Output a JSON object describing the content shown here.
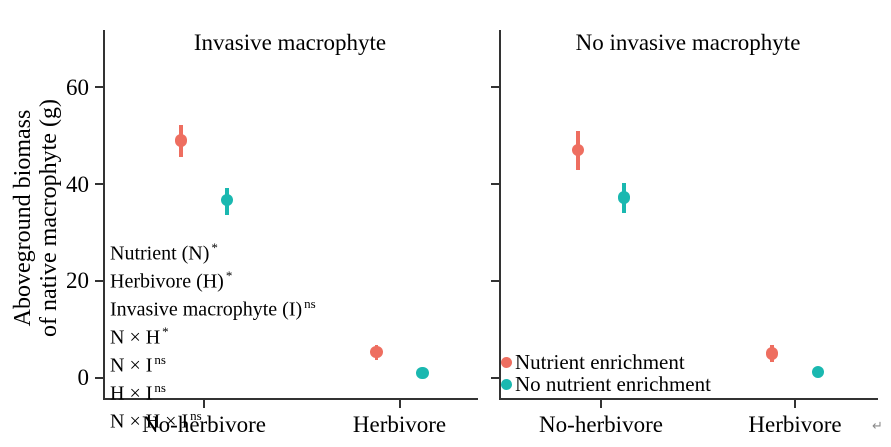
{
  "chart_data": {
    "type": "scatter",
    "subtype": "point-with-error-bars",
    "title": "",
    "xlabel": "",
    "ylabel": "Aboveground biomass of native macrophyte (g)",
    "yticks": [
      0,
      20,
      40,
      60
    ],
    "ylim": [
      -4.5,
      72
    ],
    "grid": false,
    "legend_position": "inside-right-panel-bottom-left",
    "categories": [
      "No-herbivore",
      "Herbivore"
    ],
    "panels": [
      {
        "title": "Invasive macrophyte",
        "series": [
          {
            "name": "Nutrient enrichment",
            "color": "#EE6E60",
            "points": [
              {
                "category": "No-herbivore",
                "mean": 49.0,
                "ci_low": 45.6,
                "ci_high": 52.2
              },
              {
                "category": "Herbivore",
                "mean": 5.3,
                "ci_low": 3.6,
                "ci_high": 6.8
              }
            ]
          },
          {
            "name": "No nutrient enrichment",
            "color": "#1AB8B0",
            "points": [
              {
                "category": "No-herbivore",
                "mean": 36.7,
                "ci_low": 33.6,
                "ci_high": 39.2
              },
              {
                "category": "Herbivore",
                "mean": 0.9,
                "ci_low": 0.3,
                "ci_high": 1.8
              }
            ]
          }
        ]
      },
      {
        "title": "No invasive macrophyte",
        "series": [
          {
            "name": "Nutrient enrichment",
            "color": "#EE6E60",
            "points": [
              {
                "category": "No-herbivore",
                "mean": 47.0,
                "ci_low": 42.8,
                "ci_high": 50.9
              },
              {
                "category": "Herbivore",
                "mean": 5.0,
                "ci_low": 3.1,
                "ci_high": 6.7
              }
            ]
          },
          {
            "name": "No nutrient enrichment",
            "color": "#1AB8B0",
            "points": [
              {
                "category": "No-herbivore",
                "mean": 37.2,
                "ci_low": 34.1,
                "ci_high": 40.3
              },
              {
                "category": "Herbivore",
                "mean": 1.1,
                "ci_low": 0.4,
                "ci_high": 1.9
              }
            ]
          }
        ]
      }
    ]
  },
  "y_axis": {
    "label_line1": "Aboveground biomass",
    "label_line2": "of native macrophyte (g)",
    "tick_labels": [
      "0",
      "20",
      "40",
      "60"
    ]
  },
  "stats_annotations": [
    {
      "term": "Nutrient (N)",
      "sig": "*"
    },
    {
      "term": "Herbivore (H)",
      "sig": "*"
    },
    {
      "term": "Invasive macrophyte (I)",
      "sig": "ns"
    },
    {
      "term": "N × H",
      "sig": "*"
    },
    {
      "term": "N × I",
      "sig": "ns"
    },
    {
      "term": "H × I",
      "sig": "ns"
    },
    {
      "term": "N × H × I",
      "sig": "ns"
    }
  ],
  "legend": {
    "items": [
      {
        "label": "Nutrient enrichment",
        "color": "#EE6E60"
      },
      {
        "label": "No nutrient enrichment",
        "color": "#1AB8B0"
      }
    ]
  },
  "colors": {
    "nutrient_enrichment": "#EE6E60",
    "no_nutrient_enrichment": "#1AB8B0",
    "axis": "#333333",
    "text": "#000000",
    "background": "#ffffff"
  },
  "misc": {
    "trailing_mark": "↵"
  }
}
